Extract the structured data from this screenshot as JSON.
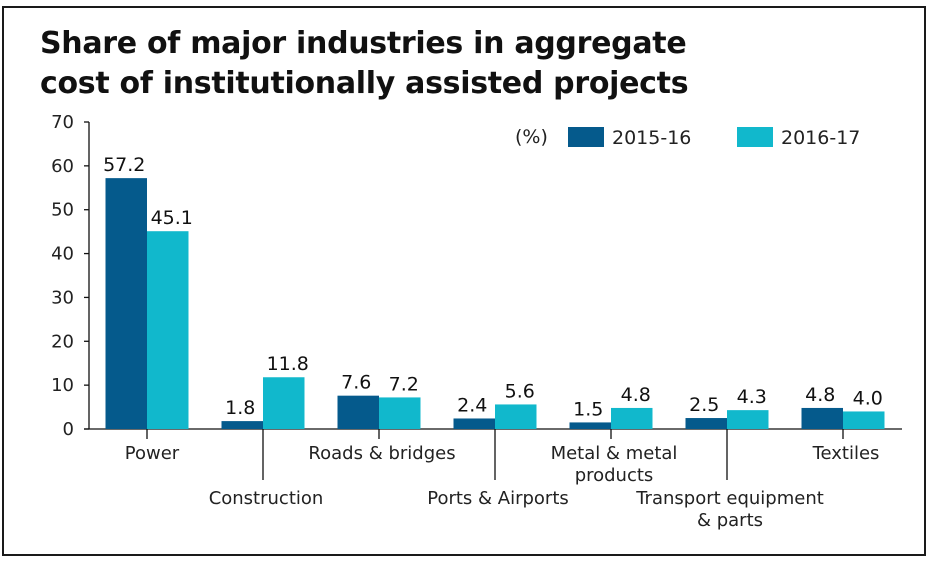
{
  "chart_data": {
    "type": "bar",
    "title_lines": [
      "Share of major industries in aggregate",
      "cost of institutionally assisted projects"
    ],
    "xlabel": "",
    "ylabel": "",
    "unit_label": "(%)",
    "ylim": [
      0,
      70
    ],
    "yticks": [
      0,
      10,
      20,
      30,
      40,
      50,
      60,
      70
    ],
    "grid": false,
    "legend_position": "top-right",
    "categories": [
      [
        "Power"
      ],
      [
        "Construction"
      ],
      [
        "Roads & bridges"
      ],
      [
        "Ports & Airports"
      ],
      [
        "Metal & metal",
        "products"
      ],
      [
        "Transport equipment",
        "& parts"
      ],
      [
        "Textiles"
      ]
    ],
    "series": [
      {
        "name": "2015-16",
        "color": "#055a8c",
        "values": [
          57.2,
          1.8,
          7.6,
          2.4,
          1.5,
          2.5,
          4.8
        ],
        "labels": [
          "57.2",
          "1.8",
          "7.6",
          "2.4",
          "1.5",
          "2.5",
          "4.8"
        ]
      },
      {
        "name": "2016-17",
        "color": "#11b8cc",
        "values": [
          45.1,
          11.8,
          7.2,
          5.6,
          4.8,
          4.3,
          4.0
        ],
        "labels": [
          "45.1",
          "11.8",
          "7.2",
          "5.6",
          "4.8",
          "4.3",
          "4.0"
        ]
      }
    ]
  }
}
